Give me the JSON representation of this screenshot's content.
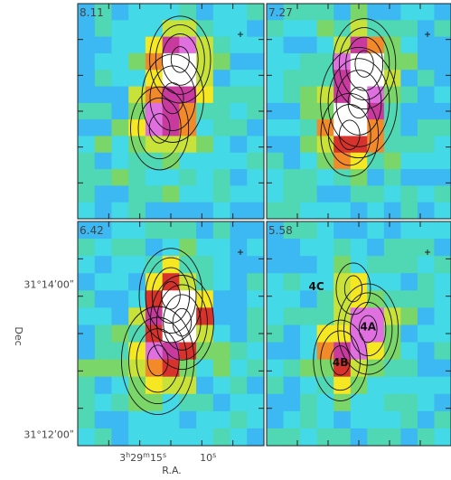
{
  "chart_data": {
    "type": "heatmap",
    "grid": {
      "cols": 11,
      "rows": 13
    },
    "colormap": [
      "#1f3ee0",
      "#2e7ff0",
      "#3cb8f2",
      "#44d9e6",
      "#4fd8b3",
      "#7bd66a",
      "#c8e23a",
      "#f5e722",
      "#f28a2a",
      "#d8322c",
      "#c83a9e",
      "#e070e0",
      "#ffffff"
    ],
    "xaxis": {
      "label": "R.A.",
      "ticks": [
        {
          "h": "3",
          "m": "29",
          "s": "15",
          "pos": 0.35
        },
        {
          "s": "10",
          "pos": 0.7
        }
      ]
    },
    "yaxis": {
      "label": "Dec",
      "ticks": [
        {
          "text": "31°14ʹ00ʺ",
          "pos": 0.28
        },
        {
          "text": "31°12ʹ00ʺ",
          "pos": 0.95
        }
      ]
    },
    "panels": [
      {
        "label": "8.11",
        "peaks": [
          {
            "x": 0.55,
            "y": 0.26,
            "amp": 3.3,
            "s": 0.085
          },
          {
            "x": 0.51,
            "y": 0.44,
            "amp": 1.6,
            "s": 0.12
          },
          {
            "x": 0.44,
            "y": 0.58,
            "amp": 1.5,
            "s": 0.11
          }
        ],
        "markers": []
      },
      {
        "label": "7.27",
        "peaks": [
          {
            "x": 0.53,
            "y": 0.28,
            "amp": 3.6,
            "s": 0.09
          },
          {
            "x": 0.5,
            "y": 0.46,
            "amp": 2.0,
            "s": 0.12
          },
          {
            "x": 0.45,
            "y": 0.61,
            "amp": 1.8,
            "s": 0.11
          }
        ],
        "markers": []
      },
      {
        "label": "6.42",
        "peaks": [
          {
            "x": 0.56,
            "y": 0.45,
            "amp": 3.4,
            "s": 0.09
          },
          {
            "x": 0.5,
            "y": 0.33,
            "amp": 2.0,
            "s": 0.09
          },
          {
            "x": 0.43,
            "y": 0.62,
            "amp": 1.9,
            "s": 0.11
          }
        ],
        "markers": []
      },
      {
        "label": "5.58",
        "peaks": [
          {
            "x": 0.55,
            "y": 0.48,
            "amp": 2.6,
            "s": 0.085
          },
          {
            "x": 0.4,
            "y": 0.62,
            "amp": 1.7,
            "s": 0.1
          },
          {
            "x": 0.47,
            "y": 0.3,
            "amp": 0.9,
            "s": 0.08
          }
        ],
        "markers": [
          {
            "text": "4A",
            "x": 0.55,
            "y": 0.47
          },
          {
            "text": "4B",
            "x": 0.4,
            "y": 0.63
          },
          {
            "text": "4C",
            "x": 0.27,
            "y": 0.29
          }
        ]
      }
    ]
  }
}
